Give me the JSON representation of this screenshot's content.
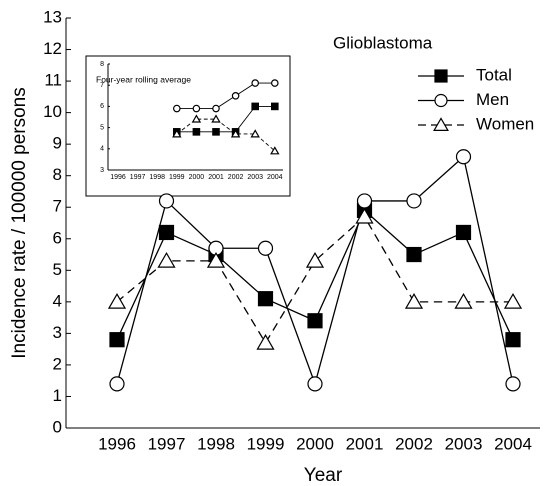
{
  "chart_data": [
    {
      "type": "line",
      "title": "Glioblastoma",
      "x_label": "Year",
      "y_label": "Incidence rate / 100000 persons",
      "categories": [
        "1996",
        "1997",
        "1998",
        "1999",
        "2000",
        "2001",
        "2002",
        "2003",
        "2004"
      ],
      "ylim": [
        0,
        13
      ],
      "yticks": [
        0,
        1,
        2,
        3,
        4,
        5,
        6,
        7,
        8,
        9,
        10,
        11,
        12,
        13
      ],
      "series": [
        {
          "name": "Total",
          "color": "#000000",
          "marker": "square",
          "filled": true,
          "dashed": false,
          "values": [
            2.8,
            6.2,
            5.5,
            4.1,
            3.4,
            6.9,
            5.5,
            6.2,
            2.8
          ]
        },
        {
          "name": "Men",
          "color": "#000000",
          "marker": "circle",
          "filled": false,
          "dashed": false,
          "values": [
            1.4,
            7.2,
            5.7,
            5.7,
            1.4,
            7.2,
            7.2,
            8.6,
            1.4
          ]
        },
        {
          "name": "Women",
          "color": "#000000",
          "marker": "triangle",
          "filled": false,
          "dashed": true,
          "values": [
            4.0,
            5.3,
            5.3,
            2.7,
            5.3,
            6.7,
            4.0,
            4.0,
            4.0
          ]
        }
      ]
    },
    {
      "type": "line",
      "title": "Four-year rolling average",
      "categories": [
        "1996",
        "1997",
        "1998",
        "1999",
        "2000",
        "2001",
        "2002",
        "2003",
        "2004"
      ],
      "ylim": [
        3,
        8
      ],
      "yticks": [
        3,
        4,
        5,
        6,
        7,
        8
      ],
      "series": [
        {
          "color": "#000000",
          "marker": "square",
          "filled": true,
          "dashed": false,
          "values": [
            null,
            null,
            null,
            4.8,
            4.8,
            4.8,
            4.8,
            6.0,
            6.0
          ]
        },
        {
          "color": "#000000",
          "marker": "circle",
          "filled": false,
          "dashed": false,
          "values": [
            null,
            null,
            null,
            5.9,
            5.9,
            5.9,
            6.5,
            7.1,
            7.1
          ]
        },
        {
          "color": "#000000",
          "marker": "triangle",
          "filled": false,
          "dashed": true,
          "values": [
            null,
            null,
            null,
            4.7,
            5.4,
            5.4,
            4.7,
            4.7,
            3.9
          ]
        }
      ]
    }
  ]
}
